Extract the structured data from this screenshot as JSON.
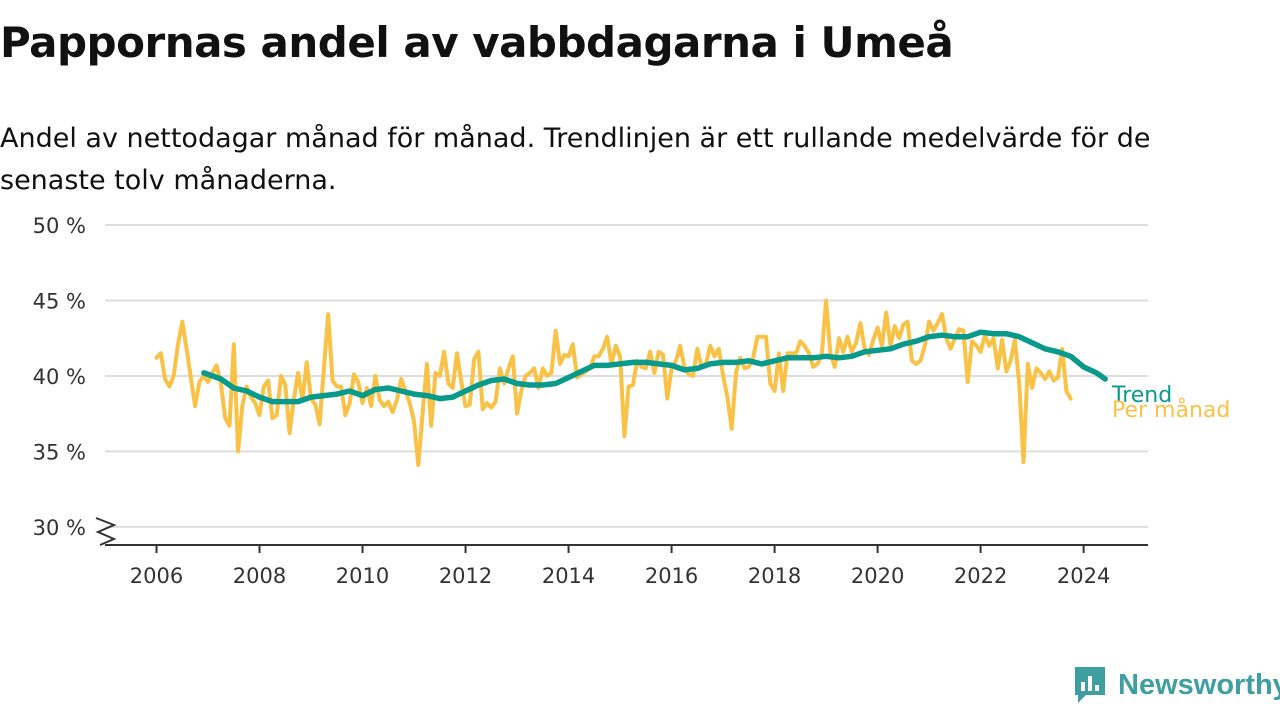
{
  "chart_data": {
    "type": "line",
    "title": "Pappornas andel av vabbdagarna i Umeå",
    "subtitle": "Andel av nettodagar månad för månad. Trendlinjen är ett rullande medelvärde för de senaste tolv månaderna.",
    "xlabel": "",
    "ylabel": "",
    "xlim": [
      2005.0,
      2025.25
    ],
    "ylim": [
      28.8,
      50
    ],
    "x_ticks": [
      2006,
      2008,
      2010,
      2012,
      2014,
      2016,
      2018,
      2020,
      2022,
      2024
    ],
    "x_tick_labels": [
      "2006",
      "2008",
      "2010",
      "2012",
      "2014",
      "2016",
      "2018",
      "2020",
      "2022",
      "2024"
    ],
    "y_ticks": [
      30,
      35,
      40,
      45,
      50
    ],
    "y_tick_labels": [
      "30 %",
      "35 %",
      "40 %",
      "45 %",
      "50 %"
    ],
    "grid": "horizontal",
    "axis_break": true,
    "legend": "direct-labels-right",
    "colors": {
      "monthly": "#f9c246",
      "trend": "#0a9a8c",
      "grid": "#dddddd",
      "axis": "#333333"
    },
    "series": [
      {
        "name": "Per månad",
        "label": "Per månad",
        "x_start": 2006.0,
        "x_step": 0.0833333,
        "values": [
          41.2,
          41.5,
          39.8,
          39.3,
          40.0,
          42.1,
          43.6,
          41.8,
          39.9,
          38.0,
          39.6,
          40.0,
          39.6,
          40.2,
          40.7,
          39.5,
          37.2,
          36.7,
          42.1,
          35.0,
          38.0,
          39.3,
          38.6,
          38.2,
          37.4,
          39.3,
          39.7,
          37.2,
          37.4,
          40.0,
          39.4,
          36.2,
          38.5,
          40.2,
          38.4,
          40.9,
          38.5,
          38.1,
          36.8,
          40.5,
          44.1,
          39.7,
          39.3,
          39.3,
          37.4,
          38.2,
          40.1,
          39.6,
          38.2,
          39.2,
          38.0,
          40.0,
          38.4,
          38.0,
          38.3,
          37.6,
          38.4,
          39.8,
          39.0,
          38.2,
          37.0,
          34.1,
          37.5,
          40.8,
          36.7,
          40.2,
          40.0,
          41.6,
          39.5,
          39.2,
          41.5,
          39.6,
          38.0,
          38.1,
          41.1,
          41.6,
          37.8,
          38.2,
          37.9,
          38.3,
          40.5,
          39.5,
          40.5,
          41.3,
          37.5,
          39.0,
          40.0,
          40.2,
          40.5,
          39.2,
          40.5,
          40.0,
          40.2,
          43.0,
          40.8,
          41.4,
          41.3,
          42.1,
          39.9,
          40.1,
          40.3,
          40.5,
          41.3,
          41.3,
          41.8,
          42.6,
          40.8,
          42.0,
          41.3,
          36.0,
          39.3,
          39.4,
          41.0,
          40.6,
          40.5,
          41.6,
          40.2,
          41.6,
          41.4,
          38.5,
          40.5,
          41.0,
          42.0,
          40.6,
          40.1,
          40.0,
          41.8,
          40.6,
          40.8,
          42.0,
          41.3,
          41.8,
          40.0,
          38.6,
          36.5,
          40.2,
          41.2,
          40.5,
          40.6,
          41.2,
          42.6,
          42.6,
          42.6,
          39.5,
          39.0,
          41.5,
          39.0,
          41.5,
          41.5,
          41.5,
          42.3,
          42.0,
          41.5,
          40.6,
          40.8,
          41.4,
          45.0,
          41.5,
          40.6,
          42.5,
          41.6,
          42.6,
          41.6,
          42.2,
          43.5,
          41.8,
          41.4,
          42.4,
          43.2,
          42.0,
          44.2,
          42.0,
          43.3,
          42.5,
          43.4,
          43.6,
          41.0,
          40.8,
          41.0,
          42.0,
          43.6,
          43.0,
          43.5,
          44.1,
          42.5,
          41.8,
          42.5,
          43.1,
          43.0,
          39.6,
          42.3,
          42.0,
          41.6,
          42.7,
          42.0,
          42.5,
          40.5,
          42.4,
          40.3,
          41.0,
          42.4,
          39.5,
          34.3,
          40.8,
          39.2,
          40.5,
          40.2,
          39.8,
          40.3,
          39.7,
          39.9,
          41.8,
          39.0,
          38.5
        ]
      },
      {
        "name": "Trend",
        "label": "Trend",
        "points": [
          [
            2006.92,
            40.2
          ],
          [
            2007.25,
            39.8
          ],
          [
            2007.5,
            39.2
          ],
          [
            2007.75,
            39.0
          ],
          [
            2008.0,
            38.6
          ],
          [
            2008.25,
            38.3
          ],
          [
            2008.5,
            38.3
          ],
          [
            2008.75,
            38.3
          ],
          [
            2009.0,
            38.6
          ],
          [
            2009.25,
            38.7
          ],
          [
            2009.5,
            38.8
          ],
          [
            2009.75,
            39.0
          ],
          [
            2010.0,
            38.7
          ],
          [
            2010.25,
            39.1
          ],
          [
            2010.5,
            39.2
          ],
          [
            2010.75,
            39.0
          ],
          [
            2011.0,
            38.8
          ],
          [
            2011.25,
            38.7
          ],
          [
            2011.5,
            38.5
          ],
          [
            2011.75,
            38.6
          ],
          [
            2012.0,
            39.0
          ],
          [
            2012.25,
            39.4
          ],
          [
            2012.5,
            39.7
          ],
          [
            2012.75,
            39.8
          ],
          [
            2013.0,
            39.5
          ],
          [
            2013.25,
            39.4
          ],
          [
            2013.5,
            39.4
          ],
          [
            2013.75,
            39.5
          ],
          [
            2014.0,
            39.9
          ],
          [
            2014.25,
            40.3
          ],
          [
            2014.5,
            40.7
          ],
          [
            2014.75,
            40.7
          ],
          [
            2015.0,
            40.8
          ],
          [
            2015.25,
            40.9
          ],
          [
            2015.5,
            40.9
          ],
          [
            2015.75,
            40.8
          ],
          [
            2016.0,
            40.7
          ],
          [
            2016.25,
            40.4
          ],
          [
            2016.5,
            40.5
          ],
          [
            2016.75,
            40.8
          ],
          [
            2017.0,
            40.9
          ],
          [
            2017.25,
            40.9
          ],
          [
            2017.5,
            41.0
          ],
          [
            2017.75,
            40.8
          ],
          [
            2018.0,
            41.0
          ],
          [
            2018.25,
            41.2
          ],
          [
            2018.5,
            41.2
          ],
          [
            2018.75,
            41.2
          ],
          [
            2019.0,
            41.3
          ],
          [
            2019.25,
            41.2
          ],
          [
            2019.5,
            41.3
          ],
          [
            2019.75,
            41.6
          ],
          [
            2020.0,
            41.7
          ],
          [
            2020.25,
            41.8
          ],
          [
            2020.5,
            42.1
          ],
          [
            2020.75,
            42.3
          ],
          [
            2021.0,
            42.6
          ],
          [
            2021.25,
            42.7
          ],
          [
            2021.5,
            42.6
          ],
          [
            2021.75,
            42.6
          ],
          [
            2022.0,
            42.9
          ],
          [
            2022.25,
            42.8
          ],
          [
            2022.5,
            42.8
          ],
          [
            2022.75,
            42.6
          ],
          [
            2023.0,
            42.2
          ],
          [
            2023.25,
            41.8
          ],
          [
            2023.5,
            41.6
          ],
          [
            2023.75,
            41.3
          ],
          [
            2024.0,
            40.6
          ],
          [
            2024.25,
            40.2
          ],
          [
            2024.42,
            39.8
          ]
        ]
      }
    ]
  },
  "logo": {
    "text": "Newsworthy",
    "icon": "bar-chart-badge-icon"
  }
}
